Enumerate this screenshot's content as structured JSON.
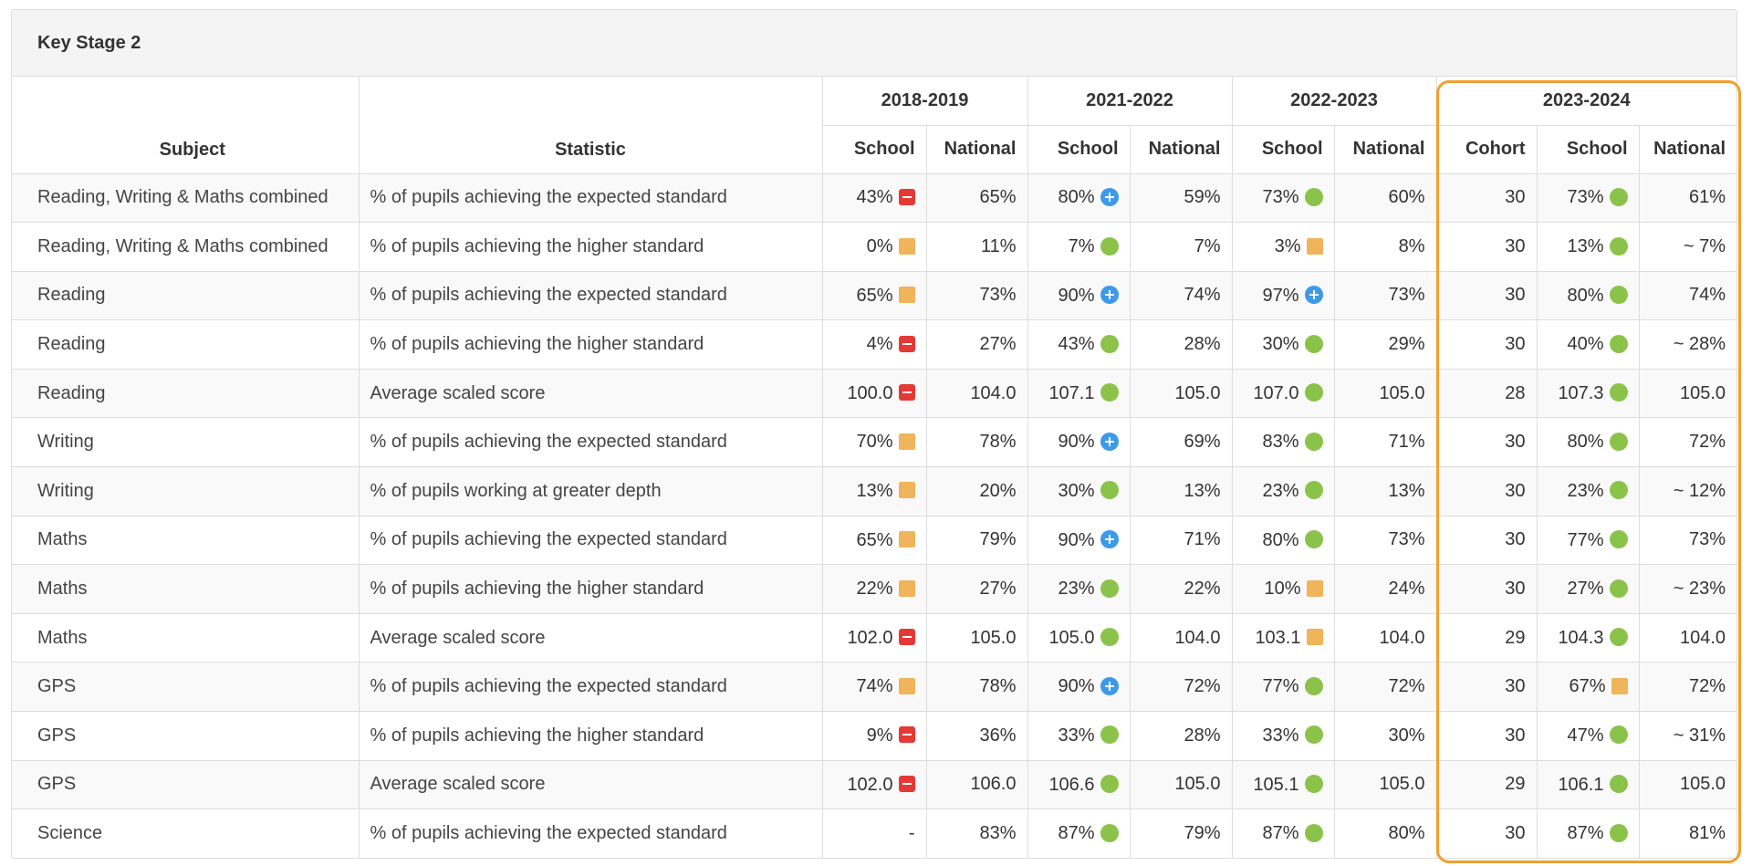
{
  "panel": {
    "title": "Key Stage 2"
  },
  "headers": {
    "subject": "Subject",
    "statistic": "Statistic",
    "years": [
      "2018-2019",
      "2021-2022",
      "2022-2023",
      "2023-2024"
    ],
    "school": "School",
    "national": "National",
    "cohort": "Cohort"
  },
  "indicator_colors": {
    "red": "#e53935",
    "amber": "#f0b45a",
    "green": "#8bc34a",
    "blue": "#3d9ae8",
    "highlight": "#f0a030"
  },
  "rows": [
    {
      "subject": "Reading, Writing & Maths combined",
      "statistic": "% of pupils achieving the expected standard",
      "y2019": {
        "school": "43%",
        "ind": "red",
        "national": "65%"
      },
      "y2022": {
        "school": "80%",
        "ind": "blue",
        "national": "59%"
      },
      "y2023": {
        "school": "73%",
        "ind": "green",
        "national": "60%"
      },
      "y2024": {
        "cohort": "30",
        "school": "73%",
        "ind": "green",
        "national": "61%"
      }
    },
    {
      "subject": "Reading, Writing & Maths combined",
      "statistic": "% of pupils achieving the higher standard",
      "y2019": {
        "school": "0%",
        "ind": "amber",
        "national": "11%"
      },
      "y2022": {
        "school": "7%",
        "ind": "green",
        "national": "7%"
      },
      "y2023": {
        "school": "3%",
        "ind": "amber",
        "national": "8%"
      },
      "y2024": {
        "cohort": "30",
        "school": "13%",
        "ind": "green",
        "national": "~ 7%"
      }
    },
    {
      "subject": "Reading",
      "statistic": "% of pupils achieving the expected standard",
      "y2019": {
        "school": "65%",
        "ind": "amber",
        "national": "73%"
      },
      "y2022": {
        "school": "90%",
        "ind": "blue",
        "national": "74%"
      },
      "y2023": {
        "school": "97%",
        "ind": "blue",
        "national": "73%"
      },
      "y2024": {
        "cohort": "30",
        "school": "80%",
        "ind": "green",
        "national": "74%"
      }
    },
    {
      "subject": "Reading",
      "statistic": "% of pupils achieving the higher standard",
      "y2019": {
        "school": "4%",
        "ind": "red",
        "national": "27%"
      },
      "y2022": {
        "school": "43%",
        "ind": "green",
        "national": "28%"
      },
      "y2023": {
        "school": "30%",
        "ind": "green",
        "national": "29%"
      },
      "y2024": {
        "cohort": "30",
        "school": "40%",
        "ind": "green",
        "national": "~ 28%"
      }
    },
    {
      "subject": "Reading",
      "statistic": "Average scaled score",
      "y2019": {
        "school": "100.0",
        "ind": "red",
        "national": "104.0"
      },
      "y2022": {
        "school": "107.1",
        "ind": "green",
        "national": "105.0"
      },
      "y2023": {
        "school": "107.0",
        "ind": "green",
        "national": "105.0"
      },
      "y2024": {
        "cohort": "28",
        "school": "107.3",
        "ind": "green",
        "national": "105.0"
      }
    },
    {
      "subject": "Writing",
      "statistic": "% of pupils achieving the expected standard",
      "y2019": {
        "school": "70%",
        "ind": "amber",
        "national": "78%"
      },
      "y2022": {
        "school": "90%",
        "ind": "blue",
        "national": "69%"
      },
      "y2023": {
        "school": "83%",
        "ind": "green",
        "national": "71%"
      },
      "y2024": {
        "cohort": "30",
        "school": "80%",
        "ind": "green",
        "national": "72%"
      }
    },
    {
      "subject": "Writing",
      "statistic": "% of pupils working at greater depth",
      "y2019": {
        "school": "13%",
        "ind": "amber",
        "national": "20%"
      },
      "y2022": {
        "school": "30%",
        "ind": "green",
        "national": "13%"
      },
      "y2023": {
        "school": "23%",
        "ind": "green",
        "national": "13%"
      },
      "y2024": {
        "cohort": "30",
        "school": "23%",
        "ind": "green",
        "national": "~ 12%"
      }
    },
    {
      "subject": "Maths",
      "statistic": "% of pupils achieving the expected standard",
      "y2019": {
        "school": "65%",
        "ind": "amber",
        "national": "79%"
      },
      "y2022": {
        "school": "90%",
        "ind": "blue",
        "national": "71%"
      },
      "y2023": {
        "school": "80%",
        "ind": "green",
        "national": "73%"
      },
      "y2024": {
        "cohort": "30",
        "school": "77%",
        "ind": "green",
        "national": "73%"
      }
    },
    {
      "subject": "Maths",
      "statistic": "% of pupils achieving the higher standard",
      "y2019": {
        "school": "22%",
        "ind": "amber",
        "national": "27%"
      },
      "y2022": {
        "school": "23%",
        "ind": "green",
        "national": "22%"
      },
      "y2023": {
        "school": "10%",
        "ind": "amber",
        "national": "24%"
      },
      "y2024": {
        "cohort": "30",
        "school": "27%",
        "ind": "green",
        "national": "~ 23%"
      }
    },
    {
      "subject": "Maths",
      "statistic": "Average scaled score",
      "y2019": {
        "school": "102.0",
        "ind": "red",
        "national": "105.0"
      },
      "y2022": {
        "school": "105.0",
        "ind": "green",
        "national": "104.0"
      },
      "y2023": {
        "school": "103.1",
        "ind": "amber",
        "national": "104.0"
      },
      "y2024": {
        "cohort": "29",
        "school": "104.3",
        "ind": "green",
        "national": "104.0"
      }
    },
    {
      "subject": "GPS",
      "statistic": "% of pupils achieving the expected standard",
      "y2019": {
        "school": "74%",
        "ind": "amber",
        "national": "78%"
      },
      "y2022": {
        "school": "90%",
        "ind": "blue",
        "national": "72%"
      },
      "y2023": {
        "school": "77%",
        "ind": "green",
        "national": "72%"
      },
      "y2024": {
        "cohort": "30",
        "school": "67%",
        "ind": "amber",
        "national": "72%"
      }
    },
    {
      "subject": "GPS",
      "statistic": "% of pupils achieving the higher standard",
      "y2019": {
        "school": "9%",
        "ind": "red",
        "national": "36%"
      },
      "y2022": {
        "school": "33%",
        "ind": "green",
        "national": "28%"
      },
      "y2023": {
        "school": "33%",
        "ind": "green",
        "national": "30%"
      },
      "y2024": {
        "cohort": "30",
        "school": "47%",
        "ind": "green",
        "national": "~ 31%"
      }
    },
    {
      "subject": "GPS",
      "statistic": "Average scaled score",
      "y2019": {
        "school": "102.0",
        "ind": "red",
        "national": "106.0"
      },
      "y2022": {
        "school": "106.6",
        "ind": "green",
        "national": "105.0"
      },
      "y2023": {
        "school": "105.1",
        "ind": "green",
        "national": "105.0"
      },
      "y2024": {
        "cohort": "29",
        "school": "106.1",
        "ind": "green",
        "national": "105.0"
      }
    },
    {
      "subject": "Science",
      "statistic": "% of pupils achieving the expected standard",
      "y2019": {
        "school": "-",
        "ind": "none",
        "national": "83%"
      },
      "y2022": {
        "school": "87%",
        "ind": "green",
        "national": "79%"
      },
      "y2023": {
        "school": "87%",
        "ind": "green",
        "national": "80%"
      },
      "y2024": {
        "cohort": "30",
        "school": "87%",
        "ind": "green",
        "national": "81%"
      }
    }
  ]
}
